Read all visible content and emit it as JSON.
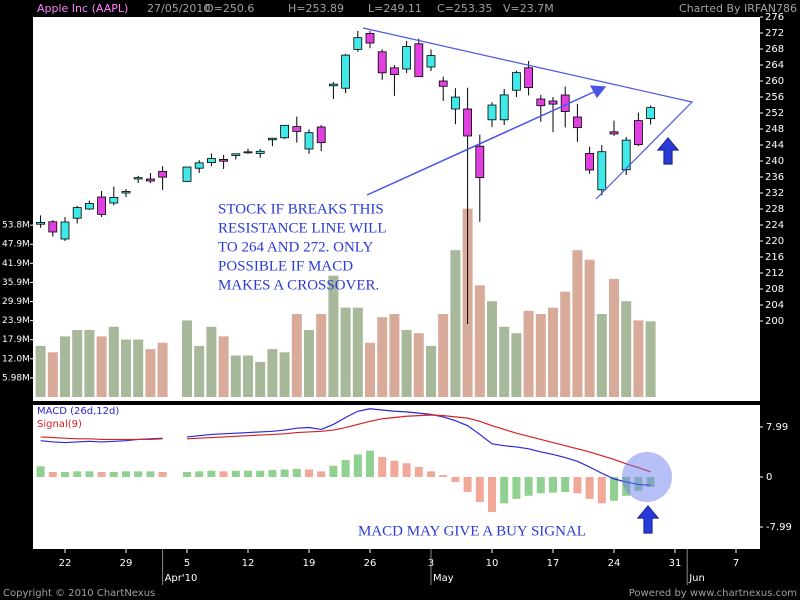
{
  "header": {
    "title": "Apple Inc (AAPL)",
    "date": "27/05/2010",
    "quote": [
      "O=250.6",
      "H=253.89",
      "L=249.11",
      "C=253.35",
      "V=23.7M"
    ],
    "credit": "Charted By IRFAN786"
  },
  "chart_data": {
    "type": "candlestick",
    "categories": [
      null,
      null,
      "22",
      null,
      null,
      null,
      null,
      "29",
      null,
      null,
      null,
      null,
      "5",
      null,
      null,
      null,
      null,
      "12",
      null,
      null,
      null,
      null,
      "19",
      null,
      null,
      null,
      null,
      "26",
      null,
      null,
      null,
      null,
      "3",
      null,
      null,
      null,
      null,
      "10",
      null,
      null,
      null,
      null,
      "17",
      null,
      null,
      null,
      null,
      "24",
      null,
      null,
      null,
      null,
      "31",
      null,
      null,
      null,
      null,
      "7",
      null
    ],
    "months": [
      null,
      null,
      null,
      null,
      null,
      null,
      null,
      null,
      null,
      null,
      "Apr'10",
      null,
      null,
      null,
      null,
      null,
      null,
      null,
      null,
      null,
      null,
      null,
      null,
      null,
      null,
      null,
      null,
      null,
      null,
      null,
      null,
      null,
      "May",
      null,
      null,
      null,
      null,
      null,
      null,
      null,
      null,
      null,
      null,
      null,
      null,
      null,
      null,
      null,
      null,
      null,
      null,
      null,
      null,
      "Jun",
      null,
      null,
      null,
      null,
      null
    ],
    "open": [
      224.2,
      224.8,
      220.5,
      225.7,
      228.0,
      231.0,
      229.5,
      232.0,
      235.5,
      235.5,
      237.4,
      null,
      234.9,
      238.2,
      239.6,
      240.4,
      241.4,
      242.2,
      241.9,
      245.3,
      245.8,
      248.6,
      243.0,
      248.5,
      258.8,
      258.2,
      267.9,
      271.9,
      267.3,
      263.3,
      263.0,
      269.3,
      263.5,
      260.0,
      253.0,
      253.0,
      243.7,
      250.3,
      250.3,
      257.7,
      263.3,
      255.5,
      255.0,
      256.5,
      251.0,
      241.9,
      232.8,
      247.3,
      237.8,
      250.1,
      250.6,
      null,
      null,
      null,
      null,
      null,
      null,
      null,
      null
    ],
    "high": [
      226.4,
      225.2,
      226.0,
      228.8,
      230.1,
      232.5,
      233.6,
      233.0,
      236.3,
      237.0,
      238.7,
      null,
      238.5,
      240.2,
      241.9,
      241.5,
      241.9,
      243.1,
      243.0,
      245.8,
      249.0,
      251.1,
      247.9,
      249.0,
      259.7,
      266.8,
      272.5,
      272.5,
      267.9,
      264.0,
      270.0,
      270.6,
      267.9,
      261.1,
      258.2,
      258.3,
      246.6,
      254.7,
      258.0,
      262.6,
      265.0,
      256.5,
      256.0,
      258.6,
      254.3,
      243.6,
      244.0,
      250.1,
      246.0,
      252.1,
      253.89,
      null,
      null,
      null,
      null,
      null,
      null,
      null,
      null
    ],
    "low": [
      223.3,
      221.1,
      220.0,
      224.4,
      227.8,
      226.0,
      228.9,
      231.0,
      234.5,
      234.5,
      232.8,
      null,
      234.8,
      237.0,
      238.7,
      238.0,
      240.4,
      241.8,
      240.8,
      243.7,
      245.5,
      244.6,
      241.8,
      242.5,
      255.5,
      257.0,
      267.3,
      268.2,
      260.3,
      256.3,
      262.0,
      261.0,
      262.5,
      255.0,
      249.2,
      199.25,
      224.8,
      248.5,
      249.0,
      256.0,
      256.4,
      249.8,
      247.2,
      248.4,
      244.8,
      236.8,
      231.4,
      246.3,
      236.5,
      243.7,
      249.11,
      null,
      null,
      null,
      null,
      null,
      null,
      null,
      null
    ],
    "close": [
      224.65,
      222.25,
      224.75,
      228.36,
      229.37,
      226.65,
      230.9,
      232.39,
      235.84,
      235.0,
      235.97,
      null,
      238.49,
      239.54,
      240.6,
      239.95,
      241.79,
      242.29,
      242.43,
      245.69,
      248.92,
      247.4,
      247.07,
      244.59,
      259.22,
      266.47,
      270.83,
      269.5,
      262.04,
      261.6,
      268.64,
      261.09,
      266.35,
      258.68,
      255.98,
      246.25,
      235.86,
      253.99,
      256.52,
      262.09,
      258.36,
      253.82,
      254.22,
      252.36,
      248.34,
      237.76,
      242.32,
      246.76,
      245.22,
      244.11,
      253.35,
      null,
      null,
      null,
      null,
      null,
      null,
      null,
      null
    ],
    "volume": [
      16,
      14,
      19,
      21,
      21,
      19,
      22,
      18,
      18,
      15,
      17,
      null,
      24,
      16,
      22,
      19,
      13,
      13,
      11,
      15,
      14,
      26,
      21,
      26,
      38,
      28,
      28,
      17,
      25,
      26,
      21,
      20,
      16,
      26,
      46,
      59,
      35,
      30,
      22,
      20,
      27,
      26,
      28,
      33,
      46,
      43,
      26,
      37,
      30,
      24,
      23.7,
      null,
      null,
      null,
      null,
      null,
      null,
      null,
      null
    ],
    "macd": [
      5.8,
      5.6,
      5.5,
      5.6,
      5.7,
      5.6,
      5.7,
      5.8,
      6.0,
      6.1,
      6.2,
      null,
      6.4,
      6.6,
      6.8,
      6.9,
      7.0,
      7.1,
      7.2,
      7.3,
      7.5,
      7.8,
      7.9,
      7.6,
      8.4,
      9.5,
      10.5,
      10.9,
      10.7,
      10.5,
      10.4,
      10.2,
      10.0,
      9.6,
      9.0,
      8.2,
      6.8,
      5.3,
      5.0,
      4.8,
      4.5,
      4.0,
      3.6,
      3.1,
      2.5,
      1.6,
      0.6,
      -0.3,
      -0.8,
      -1.2,
      -1.3,
      null,
      null,
      null,
      null,
      null,
      null,
      null,
      null
    ],
    "signal": [
      6.4,
      6.3,
      6.2,
      6.1,
      6.1,
      6.0,
      6.0,
      6.0,
      6.0,
      6.0,
      6.1,
      null,
      6.1,
      6.2,
      6.3,
      6.4,
      6.5,
      6.6,
      6.7,
      6.8,
      6.9,
      7.1,
      7.2,
      7.3,
      7.5,
      7.9,
      8.4,
      8.9,
      9.3,
      9.5,
      9.7,
      9.8,
      9.9,
      9.8,
      9.6,
      9.4,
      8.9,
      8.2,
      7.6,
      7.0,
      6.5,
      6.0,
      5.5,
      5.0,
      4.5,
      4.0,
      3.4,
      2.8,
      2.1,
      1.5,
      0.8,
      null,
      null,
      null,
      null,
      null,
      null,
      null,
      null
    ],
    "histogram": [
      1.7,
      0.8,
      0.8,
      0.9,
      0.9,
      0.8,
      0.8,
      0.9,
      0.9,
      0.9,
      0.8,
      null,
      0.8,
      0.9,
      1.0,
      0.9,
      1.0,
      1.0,
      1.0,
      1.1,
      1.2,
      1.3,
      1.2,
      0.9,
      1.8,
      2.7,
      3.6,
      4.2,
      3.2,
      2.6,
      2.2,
      1.6,
      0.9,
      0.3,
      -0.8,
      -2.4,
      -4.0,
      -5.6,
      -4.2,
      -3.5,
      -3.0,
      -2.6,
      -2.5,
      -2.4,
      -2.6,
      -3.5,
      -4.2,
      -3.8,
      -3.0,
      -2.2,
      -1.6,
      null,
      null,
      null,
      null,
      null,
      null,
      null,
      null
    ],
    "up_color": "#40e8e8",
    "down_color": "#e040e0",
    "volume_up_color": "#a8b89a",
    "volume_down_color": "#d8aa9a",
    "hist_up_color": "#90d090",
    "hist_down_color": "#f2a898",
    "macd_color": "#2828d8",
    "signal_color": "#d82020",
    "ylim": [
      180,
      276
    ],
    "yticks": [
      200,
      204,
      208,
      212,
      216,
      220,
      224,
      228,
      232,
      236,
      240,
      244,
      248,
      252,
      256,
      260,
      264,
      268,
      272,
      276
    ],
    "volume_ylim": [
      0,
      120
    ],
    "volume_ticks": [
      {
        "value": 5.98,
        "label": "5.98M"
      },
      {
        "value": 11.97,
        "label": "12.0M"
      },
      {
        "value": 17.94,
        "label": "17.9M"
      },
      {
        "value": 23.93,
        "label": "23.9M"
      },
      {
        "value": 29.91,
        "label": "29.9M"
      },
      {
        "value": 35.9,
        "label": "35.9M"
      },
      {
        "value": 41.88,
        "label": "41.9M"
      },
      {
        "value": 47.86,
        "label": "47.9M"
      },
      {
        "value": 53.84,
        "label": "53.8M"
      }
    ],
    "macd_ylim": [
      -11.5,
      11.5
    ],
    "macd_ticks": [
      7.99,
      0,
      -7.99
    ],
    "macd_label": "MACD (26d,12d)",
    "signal_label": "Signal(9)",
    "note": [
      "STOCK IF BREAKS THIS",
      "RESISTANCE LINE WILL",
      "TO 264 AND 272. ONLY",
      "POSSIBLE IF MACD",
      "MAKES A CROSSOVER."
    ],
    "buy_note": "MACD MAY GIVE A BUY SIGNAL"
  },
  "footer": {
    "left": "Copyright © 2010 ChartNexus",
    "right": "Powered by www.chartnexus.com"
  }
}
